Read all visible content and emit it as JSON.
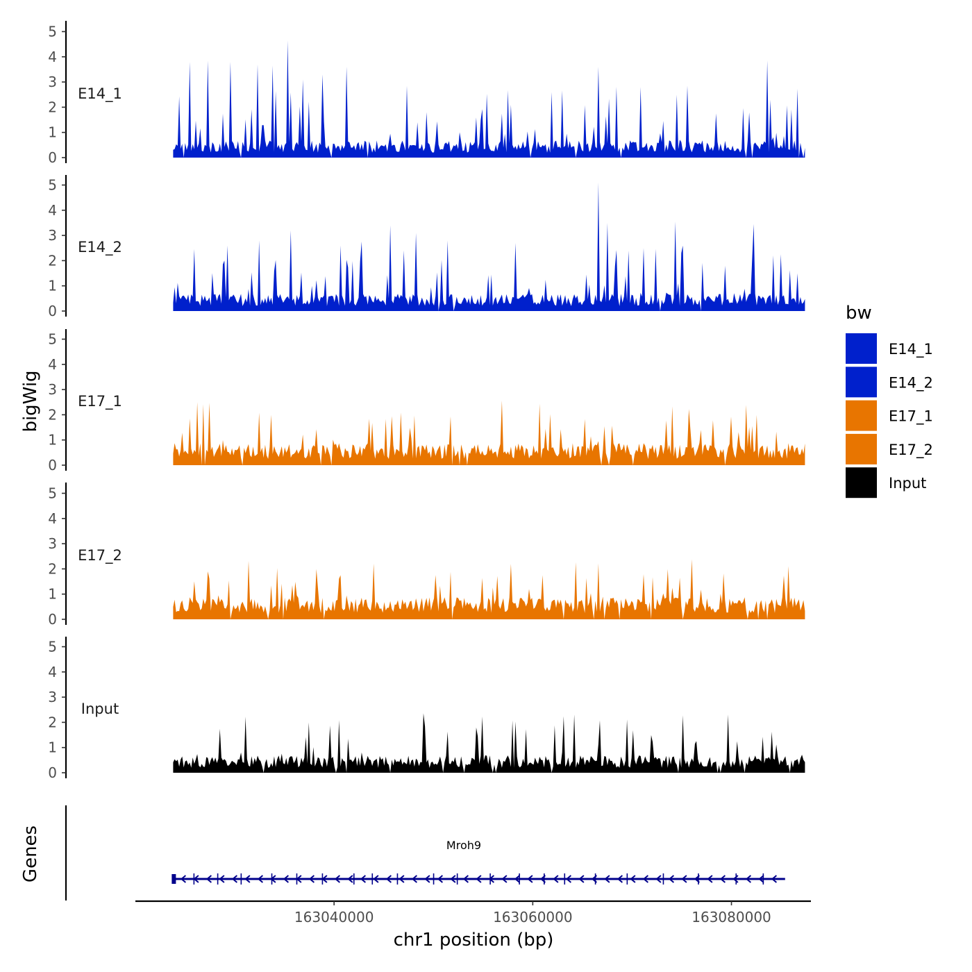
{
  "chart_data": {
    "type": "area",
    "chromosome": "chr1",
    "xlabel": "chr1 position (bp)",
    "ylabel": "bigWig",
    "genes_label": "Genes",
    "xlim": [
      163020000,
      163088000
    ],
    "data_range": [
      163023800,
      163087400
    ],
    "ylim": [
      0,
      5.2
    ],
    "y_ticks": [
      0,
      1,
      2,
      3,
      4,
      5
    ],
    "x_ticks": [
      163040000,
      163060000,
      163080000
    ],
    "x_tick_labels": [
      "163040000",
      "163060000",
      "163080000"
    ],
    "legend": {
      "title": "bw",
      "entries": [
        {
          "label": "E14_1",
          "color": "#0020CC"
        },
        {
          "label": "E14_2",
          "color": "#0020CC"
        },
        {
          "label": "E17_1",
          "color": "#E87500"
        },
        {
          "label": "E17_2",
          "color": "#E87500"
        },
        {
          "label": "Input",
          "color": "#000000"
        }
      ]
    },
    "series": [
      {
        "name": "E14_1",
        "color": "#0020CC",
        "peaks": [
          [
            163025500,
            3.8
          ],
          [
            163027300,
            3.85
          ],
          [
            163029600,
            3.8
          ],
          [
            163032300,
            3.7
          ],
          [
            163033800,
            3.65
          ],
          [
            163035300,
            4.65
          ],
          [
            163036800,
            3.1
          ],
          [
            163038800,
            3.3
          ],
          [
            163041300,
            3.6
          ],
          [
            163047400,
            2.85
          ],
          [
            163061900,
            2.6
          ],
          [
            163066600,
            3.6
          ],
          [
            163070800,
            2.8
          ],
          [
            163075600,
            2.85
          ],
          [
            163083600,
            3.85
          ]
        ]
      },
      {
        "name": "E14_2",
        "color": "#0020CC",
        "peaks": [
          [
            163029200,
            2.6
          ],
          [
            163032400,
            2.8
          ],
          [
            163035700,
            3.2
          ],
          [
            163040600,
            2.6
          ],
          [
            163045600,
            3.4
          ],
          [
            163048200,
            3.1
          ],
          [
            163051500,
            2.8
          ],
          [
            163058200,
            2.7
          ],
          [
            163066600,
            5.1
          ],
          [
            163067500,
            3.5
          ],
          [
            163071100,
            2.5
          ],
          [
            163074400,
            3.55
          ],
          [
            163082300,
            3.45
          ]
        ]
      },
      {
        "name": "E17_1",
        "color": "#E87500"
      },
      {
        "name": "E17_2",
        "color": "#E87500"
      },
      {
        "name": "Input",
        "color": "#000000"
      }
    ],
    "gene": {
      "name": "Mroh9",
      "start": 163023800,
      "end": 163085400,
      "strand": "-"
    }
  }
}
